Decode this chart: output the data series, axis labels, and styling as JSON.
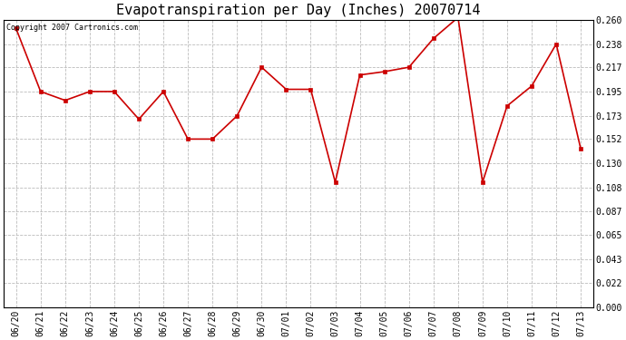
{
  "title": "Evapotranspiration per Day (Inches) 20070714",
  "copyright_text": "Copyright 2007 Cartronics.com",
  "dates": [
    "06/20",
    "06/21",
    "06/22",
    "06/23",
    "06/24",
    "06/25",
    "06/26",
    "06/27",
    "06/28",
    "06/29",
    "06/30",
    "07/01",
    "07/02",
    "07/03",
    "07/04",
    "07/05",
    "07/06",
    "07/07",
    "07/08",
    "07/09",
    "07/10",
    "07/11",
    "07/12",
    "07/13"
  ],
  "values": [
    0.252,
    0.195,
    0.187,
    0.195,
    0.195,
    0.17,
    0.195,
    0.152,
    0.152,
    0.173,
    0.217,
    0.197,
    0.197,
    0.113,
    0.21,
    0.213,
    0.217,
    0.243,
    0.262,
    0.113,
    0.182,
    0.2,
    0.238,
    0.143
  ],
  "line_color": "#cc0000",
  "marker": "s",
  "marker_size": 3,
  "bg_color": "#ffffff",
  "plot_bg_color": "#ffffff",
  "grid_color": "#bbbbbb",
  "ylim": [
    0.0,
    0.26
  ],
  "yticks": [
    0.0,
    0.022,
    0.043,
    0.065,
    0.087,
    0.108,
    0.13,
    0.152,
    0.173,
    0.195,
    0.217,
    0.238,
    0.26
  ],
  "title_fontsize": 11,
  "copyright_fontsize": 6,
  "tick_fontsize": 7,
  "figwidth": 6.9,
  "figheight": 3.75,
  "dpi": 100
}
